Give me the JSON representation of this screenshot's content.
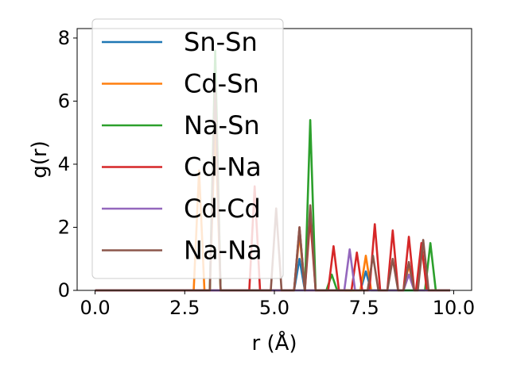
{
  "chart_data": {
    "type": "line",
    "title": "",
    "xlabel": "r (Å)",
    "ylabel": "g(r)",
    "xlim": [
      -0.5,
      10.5
    ],
    "ylim": [
      0,
      8.3
    ],
    "xticks": [
      0.0,
      2.5,
      5.0,
      7.5,
      10.0
    ],
    "xtick_labels": [
      "0.0",
      "2.5",
      "5.0",
      "7.5",
      "10.0"
    ],
    "yticks": [
      0,
      2,
      4,
      6,
      8
    ],
    "ytick_labels": [
      "0",
      "2",
      "4",
      "6",
      "8"
    ],
    "grid": false,
    "legend_position": "upper-left",
    "series": [
      {
        "name": "Sn-Sn",
        "color": "#1f77b4",
        "x": [
          0.0,
          5.55,
          5.7,
          5.85,
          7.4,
          7.55,
          7.7,
          9.9
        ],
        "y": [
          0,
          0,
          1.0,
          0,
          0,
          0.6,
          0,
          0
        ]
      },
      {
        "name": "Cd-Sn",
        "color": "#ff7f0e",
        "x": [
          0.0,
          2.75,
          2.9,
          3.05,
          3.2,
          3.35,
          3.5,
          5.55,
          5.7,
          5.85,
          7.4,
          7.55,
          7.7,
          8.6,
          8.75,
          8.9,
          9.9
        ],
        "y": [
          0,
          0,
          3.8,
          0,
          0,
          5.3,
          0,
          0,
          1.8,
          0,
          0,
          1.1,
          0,
          0,
          0.8,
          0,
          0
        ]
      },
      {
        "name": "Na-Sn",
        "color": "#2ca02c",
        "x": [
          0.0,
          3.2,
          3.35,
          3.5,
          5.85,
          6.0,
          6.15,
          6.45,
          6.6,
          6.75,
          9.2,
          9.35,
          9.5,
          9.9
        ],
        "y": [
          0,
          0,
          7.6,
          0,
          0,
          5.4,
          0,
          0,
          0.5,
          0,
          0,
          1.5,
          0,
          0
        ]
      },
      {
        "name": "Cd-Na",
        "color": "#d62728",
        "x": [
          0.0,
          4.3,
          4.45,
          4.6,
          5.55,
          5.7,
          5.85,
          6.0,
          6.15,
          6.5,
          6.65,
          6.8,
          7.15,
          7.3,
          7.45,
          7.65,
          7.8,
          7.95,
          8.15,
          8.3,
          8.45,
          8.6,
          8.75,
          8.9,
          8.95,
          9.1,
          9.25,
          9.9
        ],
        "y": [
          0,
          0,
          3.3,
          0,
          0,
          2.0,
          0,
          2.3,
          0,
          0,
          1.4,
          0,
          0,
          1.2,
          0,
          0,
          2.1,
          0,
          0,
          1.9,
          0,
          0,
          1.7,
          0,
          0,
          1.5,
          0,
          0
        ]
      },
      {
        "name": "Cd-Cd",
        "color": "#9467bd",
        "x": [
          0.0,
          6.95,
          7.1,
          7.25,
          8.6,
          8.75,
          8.9,
          9.9
        ],
        "y": [
          0,
          0,
          1.3,
          0,
          0,
          0.5,
          0,
          0
        ]
      },
      {
        "name": "Na-Na",
        "color": "#8c564b",
        "x": [
          0.0,
          3.2,
          3.35,
          3.5,
          4.9,
          5.05,
          5.2,
          5.55,
          5.7,
          5.85,
          6.0,
          6.15,
          7.6,
          7.75,
          7.9,
          8.15,
          8.3,
          8.45,
          8.6,
          8.75,
          8.9,
          9.0,
          9.15,
          9.3,
          9.9
        ],
        "y": [
          0,
          0,
          6.6,
          0,
          0,
          2.6,
          0,
          0,
          2.0,
          0,
          2.7,
          0,
          0,
          1.1,
          0,
          0,
          1.0,
          0,
          0,
          0.9,
          0,
          0,
          1.6,
          0,
          0
        ]
      }
    ]
  }
}
